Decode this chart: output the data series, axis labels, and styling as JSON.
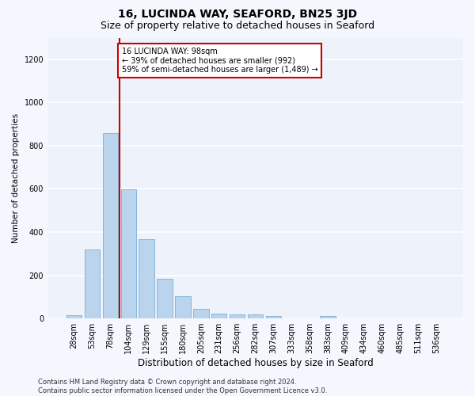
{
  "title": "16, LUCINDA WAY, SEAFORD, BN25 3JD",
  "subtitle": "Size of property relative to detached houses in Seaford",
  "xlabel": "Distribution of detached houses by size in Seaford",
  "ylabel": "Number of detached properties",
  "bar_color": "#bad4ee",
  "bar_edge_color": "#7aafd4",
  "background_color": "#eef2fa",
  "fig_background_color": "#f5f7ff",
  "grid_color": "#ffffff",
  "categories": [
    "28sqm",
    "53sqm",
    "78sqm",
    "104sqm",
    "129sqm",
    "155sqm",
    "180sqm",
    "205sqm",
    "231sqm",
    "256sqm",
    "282sqm",
    "307sqm",
    "333sqm",
    "358sqm",
    "383sqm",
    "409sqm",
    "434sqm",
    "460sqm",
    "485sqm",
    "511sqm",
    "536sqm"
  ],
  "values": [
    15,
    318,
    860,
    598,
    368,
    183,
    102,
    46,
    22,
    18,
    19,
    10,
    0,
    0,
    13,
    0,
    0,
    0,
    0,
    0,
    0
  ],
  "ylim": [
    0,
    1300
  ],
  "yticks": [
    0,
    200,
    400,
    600,
    800,
    1000,
    1200
  ],
  "vline_x_index": 2.5,
  "annotation_text": "16 LUCINDA WAY: 98sqm\n← 39% of detached houses are smaller (992)\n59% of semi-detached houses are larger (1,489) →",
  "annotation_box_color": "#ffffff",
  "annotation_border_color": "#cc0000",
  "vline_color": "#cc0000",
  "footer_text": "Contains HM Land Registry data © Crown copyright and database right 2024.\nContains public sector information licensed under the Open Government Licence v3.0.",
  "title_fontsize": 10,
  "subtitle_fontsize": 9,
  "xlabel_fontsize": 8.5,
  "ylabel_fontsize": 7.5,
  "tick_fontsize": 7,
  "annotation_fontsize": 7,
  "footer_fontsize": 6
}
